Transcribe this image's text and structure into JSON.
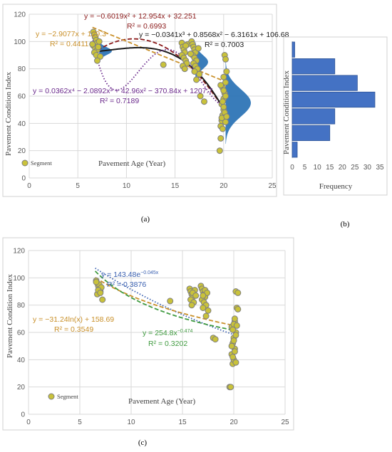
{
  "panel_labels": {
    "a": "(a)",
    "b": "(b)",
    "c": "(c)"
  },
  "chart_data": [
    {
      "type": "scatter",
      "panel": "a",
      "xlabel": "Pavement Age (Year)",
      "ylabel": "Pavement Condition Index",
      "xlim": [
        0,
        25
      ],
      "ylim": [
        0,
        120
      ],
      "xticks": [
        "0",
        "5",
        "10",
        "15",
        "20",
        "25"
      ],
      "yticks": [
        "0",
        "20",
        "40",
        "60",
        "80",
        "100",
        "120"
      ],
      "grid": true,
      "legend": {
        "label": "Segment",
        "placement": "bottom-left"
      },
      "point_color": "#c9c23a",
      "series": [
        {
          "name": "Segment",
          "points": [
            [
              6.6,
              107
            ],
            [
              6.7,
              105
            ],
            [
              6.8,
              103
            ],
            [
              6.9,
              101
            ],
            [
              7.0,
              99
            ],
            [
              6.6,
              97
            ],
            [
              6.8,
              95
            ],
            [
              7.0,
              94
            ],
            [
              6.7,
              92
            ],
            [
              6.9,
              90
            ],
            [
              7.1,
              96
            ],
            [
              7.2,
              100
            ],
            [
              6.5,
              98
            ],
            [
              7.3,
              89
            ],
            [
              7.0,
              86
            ],
            [
              13.8,
              83
            ],
            [
              15.7,
              99
            ],
            [
              15.8,
              96
            ],
            [
              15.9,
              94
            ],
            [
              16.0,
              92
            ],
            [
              15.7,
              90
            ],
            [
              15.9,
              88
            ],
            [
              16.1,
              86
            ],
            [
              16.2,
              84
            ],
            [
              15.8,
              82
            ],
            [
              16.0,
              80
            ],
            [
              16.3,
              98
            ],
            [
              16.1,
              97
            ],
            [
              16.7,
              100
            ],
            [
              16.8,
              98
            ],
            [
              16.9,
              96
            ],
            [
              17.0,
              94
            ],
            [
              17.1,
              92
            ],
            [
              16.8,
              90
            ],
            [
              17.0,
              88
            ],
            [
              17.2,
              86
            ],
            [
              16.9,
              84
            ],
            [
              17.1,
              82
            ],
            [
              17.3,
              80
            ],
            [
              17.0,
              78
            ],
            [
              17.4,
              95
            ],
            [
              16.6,
              91
            ],
            [
              17.5,
              76
            ],
            [
              17.2,
              72
            ],
            [
              17.6,
              60
            ],
            [
              18.0,
              56
            ],
            [
              19.6,
              20
            ],
            [
              19.7,
              29
            ],
            [
              19.7,
              38
            ],
            [
              19.8,
              42
            ],
            [
              19.9,
              46
            ],
            [
              20.0,
              50
            ],
            [
              19.8,
              54
            ],
            [
              20.0,
              58
            ],
            [
              20.1,
              62
            ],
            [
              19.9,
              66
            ],
            [
              20.2,
              70
            ],
            [
              20.0,
              74
            ],
            [
              20.3,
              78
            ],
            [
              20.1,
              90
            ],
            [
              20.2,
              87
            ],
            [
              19.8,
              44
            ],
            [
              20.1,
              48
            ],
            [
              20.0,
              52
            ],
            [
              19.9,
              56
            ],
            [
              20.2,
              60
            ],
            [
              20.0,
              64
            ],
            [
              19.7,
              68
            ],
            [
              20.3,
              45
            ],
            [
              20.2,
              41
            ],
            [
              19.9,
              36
            ]
          ]
        }
      ],
      "fits": [
        {
          "equation": "y = −0.6019x² + 12.954x + 32.251",
          "r2": "R² = 0.6993",
          "color": "#8b1a1a",
          "style": "dash",
          "kind": "poly2",
          "coeffs": [
            32.251,
            12.954,
            -0.6019
          ],
          "range": [
            6.5,
            20
          ]
        },
        {
          "equation": "y = −2.9077x + 129.3",
          "r2": "R² = 0.4411",
          "color": "#c9902a",
          "style": "dash",
          "kind": "poly1",
          "coeffs": [
            129.3,
            -2.9077
          ],
          "range": [
            6.5,
            20
          ]
        },
        {
          "equation": "y = −0.0341x³ + 0.8568x² − 6.3161x + 106.68",
          "r2": "R² = 0.7003",
          "color": "#1a1a1a",
          "style": "solid",
          "kind": "poly3",
          "coeffs": [
            106.68,
            -6.3161,
            0.8568,
            -0.0341
          ],
          "range": [
            6.5,
            20
          ]
        },
        {
          "equation": "y = 0.0362x⁴ − 2.0892x³ + 42.96x² − 370.84x + 1207.7",
          "r2": "R² = 0.7189",
          "color": "#6b2a8c",
          "style": "dot",
          "kind": "poly4",
          "coeffs": [
            1207.7,
            -370.84,
            42.96,
            -2.0892,
            0.0362
          ],
          "range": [
            6.5,
            20
          ]
        }
      ],
      "distributions": [
        {
          "x_base": 7.2,
          "mean": 93,
          "sd": 2.8,
          "width": 1.3,
          "color": "#2e75b6"
        },
        {
          "x_base": 17.1,
          "mean": 85,
          "sd": 5.0,
          "width": 1.3,
          "color": "#2e75b6"
        },
        {
          "x_base": 20.2,
          "mean": 55,
          "sd": 10.0,
          "width": 2.6,
          "color": "#2e75b6"
        }
      ]
    },
    {
      "type": "bar",
      "panel": "b",
      "orientation": "horizontal",
      "xlabel": "Frequency",
      "ylabel": "Pavement Condition Index",
      "xlim": [
        0,
        35
      ],
      "xticks": [
        "0",
        "5",
        "10",
        "15",
        "20",
        "25",
        "30",
        "35"
      ],
      "bar_color": "#4472c4",
      "bins": [
        {
          "range": [
            100,
            110
          ],
          "count": 1
        },
        {
          "range": [
            90,
            100
          ],
          "count": 17
        },
        {
          "range": [
            80,
            90
          ],
          "count": 26
        },
        {
          "range": [
            70,
            80
          ],
          "count": 33
        },
        {
          "range": [
            60,
            70
          ],
          "count": 17
        },
        {
          "range": [
            50,
            60
          ],
          "count": 15
        },
        {
          "range": [
            40,
            50
          ],
          "count": 2
        }
      ]
    },
    {
      "type": "scatter",
      "panel": "c",
      "xlabel": "Pavement Age (Year)",
      "ylabel": "Pavement Condition Index",
      "xlim": [
        0,
        25
      ],
      "ylim": [
        0,
        120
      ],
      "xticks": [
        "0",
        "5",
        "10",
        "15",
        "20",
        "25"
      ],
      "yticks": [
        "0",
        "20",
        "40",
        "60",
        "80",
        "100",
        "120"
      ],
      "grid": true,
      "legend": {
        "label": "Segment",
        "placement": "bottom-left"
      },
      "point_color": "#c9c23a",
      "series": [
        {
          "name": "Segment",
          "points": [
            [
              6.6,
              98
            ],
            [
              6.7,
              96
            ],
            [
              6.8,
              94
            ],
            [
              6.9,
              92
            ],
            [
              7.0,
              90
            ],
            [
              6.7,
              88
            ],
            [
              6.9,
              95
            ],
            [
              7.1,
              93
            ],
            [
              6.8,
              91
            ],
            [
              7.0,
              89
            ],
            [
              6.6,
              97
            ],
            [
              7.2,
              84
            ],
            [
              13.8,
              83
            ],
            [
              15.7,
              92
            ],
            [
              15.8,
              90
            ],
            [
              15.9,
              88
            ],
            [
              16.0,
              86
            ],
            [
              15.8,
              84
            ],
            [
              16.1,
              82
            ],
            [
              15.9,
              80
            ],
            [
              16.2,
              91
            ],
            [
              16.0,
              89
            ],
            [
              16.3,
              87
            ],
            [
              16.8,
              94
            ],
            [
              16.9,
              92
            ],
            [
              17.0,
              90
            ],
            [
              17.1,
              88
            ],
            [
              17.2,
              86
            ],
            [
              16.9,
              84
            ],
            [
              17.1,
              82
            ],
            [
              17.3,
              80
            ],
            [
              17.0,
              78
            ],
            [
              17.2,
              91
            ],
            [
              17.4,
              89
            ],
            [
              17.0,
              87
            ],
            [
              17.3,
              72
            ],
            [
              17.5,
              76
            ],
            [
              18.0,
              56
            ],
            [
              18.2,
              55
            ],
            [
              19.6,
              20
            ],
            [
              19.7,
              20
            ],
            [
              19.9,
              37
            ],
            [
              20.0,
              40
            ],
            [
              19.8,
              44
            ],
            [
              20.1,
              48
            ],
            [
              19.9,
              52
            ],
            [
              20.0,
              56
            ],
            [
              20.2,
              60
            ],
            [
              19.8,
              64
            ],
            [
              20.1,
              68
            ],
            [
              20.0,
              66
            ],
            [
              20.3,
              78
            ],
            [
              20.2,
              90
            ],
            [
              20.4,
              89
            ],
            [
              19.9,
              42
            ],
            [
              20.2,
              38
            ],
            [
              20.1,
              46
            ],
            [
              19.8,
              50
            ],
            [
              20.0,
              54
            ],
            [
              20.2,
              58
            ],
            [
              19.9,
              62
            ],
            [
              20.3,
              65
            ],
            [
              20.1,
              70
            ],
            [
              20.4,
              77
            ]
          ]
        }
      ],
      "fits": [
        {
          "equation": "y = 143.48e",
          "equation_sup": "−0.045x",
          "r2": "R² = 0.3876",
          "color": "#3a60b0",
          "style": "dot",
          "kind": "exp",
          "coeffs": [
            143.48,
            -0.045
          ],
          "range": [
            6.5,
            20
          ]
        },
        {
          "equation": "y = −31.24ln(x) + 158.69",
          "equation_sup": "",
          "r2": "R² = 0.3549",
          "color": "#c9902a",
          "style": "dash",
          "kind": "log",
          "coeffs": [
            158.69,
            -31.24
          ],
          "range": [
            6.5,
            20
          ]
        },
        {
          "equation": "y = 254.8x",
          "equation_sup": "−0.474",
          "r2": "R² = 0.3202",
          "color": "#3f9a3f",
          "style": "dash",
          "kind": "power",
          "coeffs": [
            254.8,
            -0.474
          ],
          "range": [
            6.5,
            20
          ]
        }
      ]
    }
  ]
}
